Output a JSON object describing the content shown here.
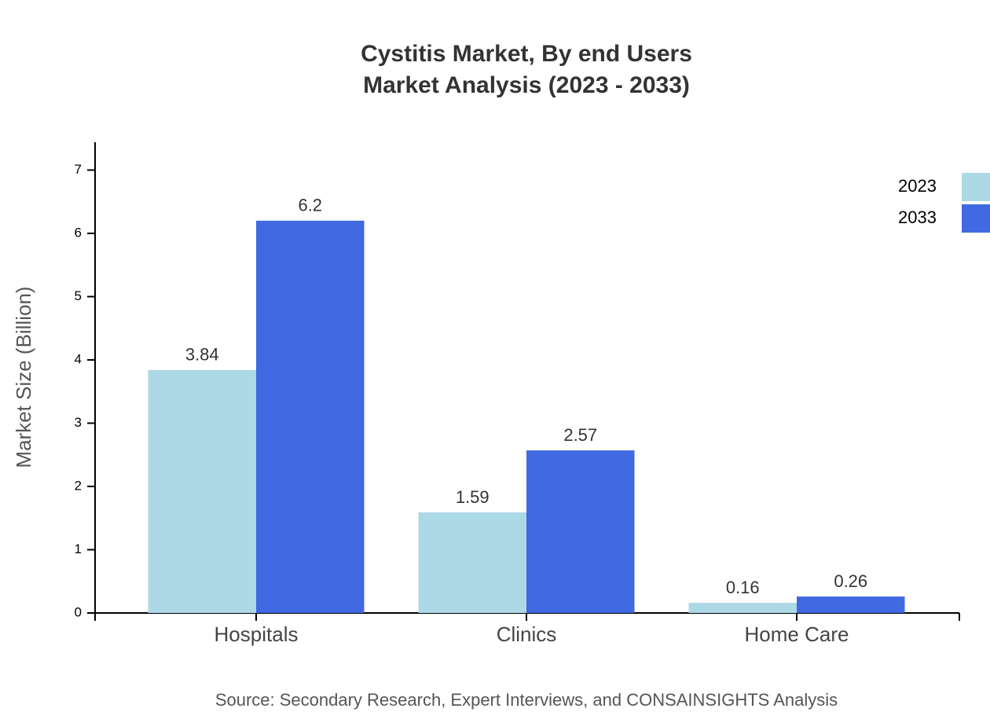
{
  "chart_data": {
    "type": "bar",
    "title": "Cystitis Market, By end Users",
    "subtitle": "Market Analysis (2023 - 2033)",
    "y_label": "Market Size (Billion)",
    "source": "Source: Secondary Research, Expert Interviews, and CONSAINSIGHTS Analysis",
    "categories": [
      "Hospitals",
      "Clinics",
      "Home Care"
    ],
    "series": [
      {
        "name": "2023",
        "color": "#add8e6",
        "values": [
          3.84,
          1.59,
          0.16
        ]
      },
      {
        "name": "2033",
        "color": "#4169e1",
        "values": [
          6.2,
          2.57,
          0.26
        ]
      }
    ],
    "ylim": [
      0,
      7.44
    ],
    "yticks": [
      0,
      1,
      2,
      3,
      4,
      5,
      6,
      7
    ]
  }
}
